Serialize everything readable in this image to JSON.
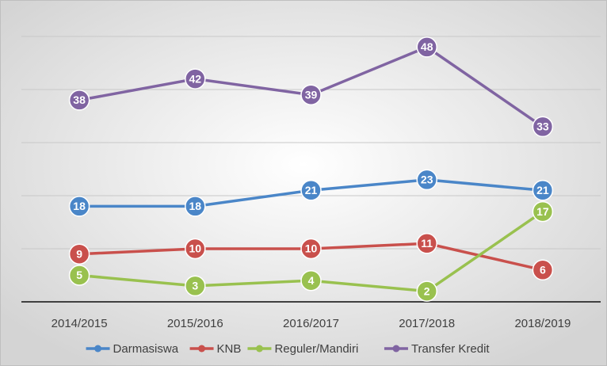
{
  "chart_data": {
    "type": "line",
    "categories": [
      "2014/2015",
      "2015/2016",
      "2016/2017",
      "2017/2018",
      "2018/2019"
    ],
    "series": [
      {
        "name": "Darmasiswa",
        "color": "#4a86c8",
        "values": [
          18,
          18,
          21,
          23,
          21
        ]
      },
      {
        "name": "KNB",
        "color": "#c9504c",
        "values": [
          9,
          10,
          10,
          11,
          6
        ]
      },
      {
        "name": "Reguler/Mandiri",
        "color": "#99c14f",
        "values": [
          5,
          3,
          4,
          2,
          17
        ]
      },
      {
        "name": "Transfer Kredit",
        "color": "#8064a2",
        "values": [
          38,
          42,
          39,
          48,
          33
        ]
      }
    ],
    "ylim": [
      0,
      50
    ],
    "yticks": [
      0,
      10,
      20,
      30,
      40,
      50
    ],
    "grid": true,
    "legend": "bottom"
  }
}
